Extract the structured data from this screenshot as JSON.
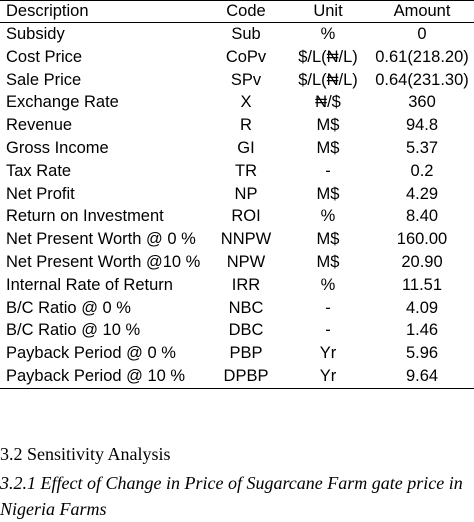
{
  "table": {
    "headers": {
      "description": "Description",
      "code": "Code",
      "unit": "Unit",
      "amount": "Amount"
    },
    "rows": [
      {
        "description": "Subsidy",
        "code": "Sub",
        "unit": "%",
        "amount": "0"
      },
      {
        "description": "Cost Price",
        "code": "CoPv",
        "unit": "$/L(₦/L)",
        "amount": "0.61(218.20)"
      },
      {
        "description": "Sale Price",
        "code": "SPv",
        "unit": "$/L(₦/L)",
        "amount": "0.64(231.30)"
      },
      {
        "description": "Exchange Rate",
        "code": "X",
        "unit": "₦/$",
        "amount": "360"
      },
      {
        "description": "Revenue",
        "code": "R",
        "unit": "M$",
        "amount": "94.8"
      },
      {
        "description": "Gross Income",
        "code": "GI",
        "unit": "M$",
        "amount": "5.37"
      },
      {
        "description": "Tax Rate",
        "code": "TR",
        "unit": "-",
        "amount": "0.2"
      },
      {
        "description": "Net Profit",
        "code": "NP",
        "unit": "M$",
        "amount": "4.29"
      },
      {
        "description": "Return on Investment",
        "code": "ROI",
        "unit": "%",
        "amount": "8.40"
      },
      {
        "description": "Net Present Worth @ 0 %",
        "code": "NNPW",
        "unit": "M$",
        "amount": "160.00"
      },
      {
        "description": "Net Present Worth @10 %",
        "code": "NPW",
        "unit": "M$",
        "amount": "20.90"
      },
      {
        "description": "Internal Rate of Return",
        "code": "IRR",
        "unit": "%",
        "amount": "11.51"
      },
      {
        "description": "B/C Ratio @ 0 %",
        "code": "NBC",
        "unit": "-",
        "amount": "4.09"
      },
      {
        "description": "B/C Ratio @ 10 %",
        "code": "DBC",
        "unit": "-",
        "amount": "1.46"
      },
      {
        "description": "Payback Period @ 0 %",
        "code": "PBP",
        "unit": "Yr",
        "amount": "5.96"
      },
      {
        "description": "Payback Period @ 10 %",
        "code": "DPBP",
        "unit": "Yr",
        "amount": "9.64"
      }
    ]
  },
  "section": {
    "heading": "3.2 Sensitivity Analysis",
    "subheading": "3.2.1 Effect of Change in Price of Sugarcane Farm gate price in Nigeria Farms"
  }
}
